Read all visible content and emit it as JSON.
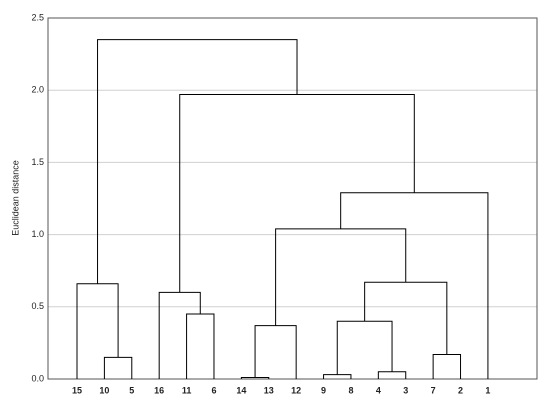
{
  "chart_data": {
    "type": "dendrogram",
    "y_label": "Euclidean distance",
    "categories": [
      "15",
      "10",
      "5",
      "16",
      "11",
      "6",
      "14",
      "13",
      "12",
      "9",
      "8",
      "4",
      "3",
      "7",
      "2",
      "1"
    ],
    "merges": [
      {
        "children": [
          1,
          2
        ],
        "height": 0.15
      },
      {
        "children": [
          0,
          16
        ],
        "height": 0.66
      },
      {
        "children": [
          4,
          5
        ],
        "height": 0.45
      },
      {
        "children": [
          3,
          18
        ],
        "height": 0.6
      },
      {
        "children": [
          6,
          7
        ],
        "height": 0.01
      },
      {
        "children": [
          20,
          8
        ],
        "height": 0.37
      },
      {
        "children": [
          9,
          10
        ],
        "height": 0.03
      },
      {
        "children": [
          11,
          12
        ],
        "height": 0.05
      },
      {
        "children": [
          22,
          23
        ],
        "height": 0.4
      },
      {
        "children": [
          13,
          14
        ],
        "height": 0.17
      },
      {
        "children": [
          24,
          25
        ],
        "height": 0.67
      },
      {
        "children": [
          21,
          26
        ],
        "height": 1.04
      },
      {
        "children": [
          27,
          15
        ],
        "height": 1.29
      },
      {
        "children": [
          19,
          28
        ],
        "height": 1.97
      },
      {
        "children": [
          17,
          29
        ],
        "height": 2.35
      }
    ],
    "color": "#000000",
    "ylim": [
      0,
      2.5
    ],
    "yticks": [
      {
        "value": 0,
        "label": "0.0"
      },
      0.5,
      {
        "value": 1,
        "label": "1.0"
      },
      1.5,
      {
        "value": 2,
        "label": "2.0"
      },
      2.5
    ],
    "grid": true
  }
}
